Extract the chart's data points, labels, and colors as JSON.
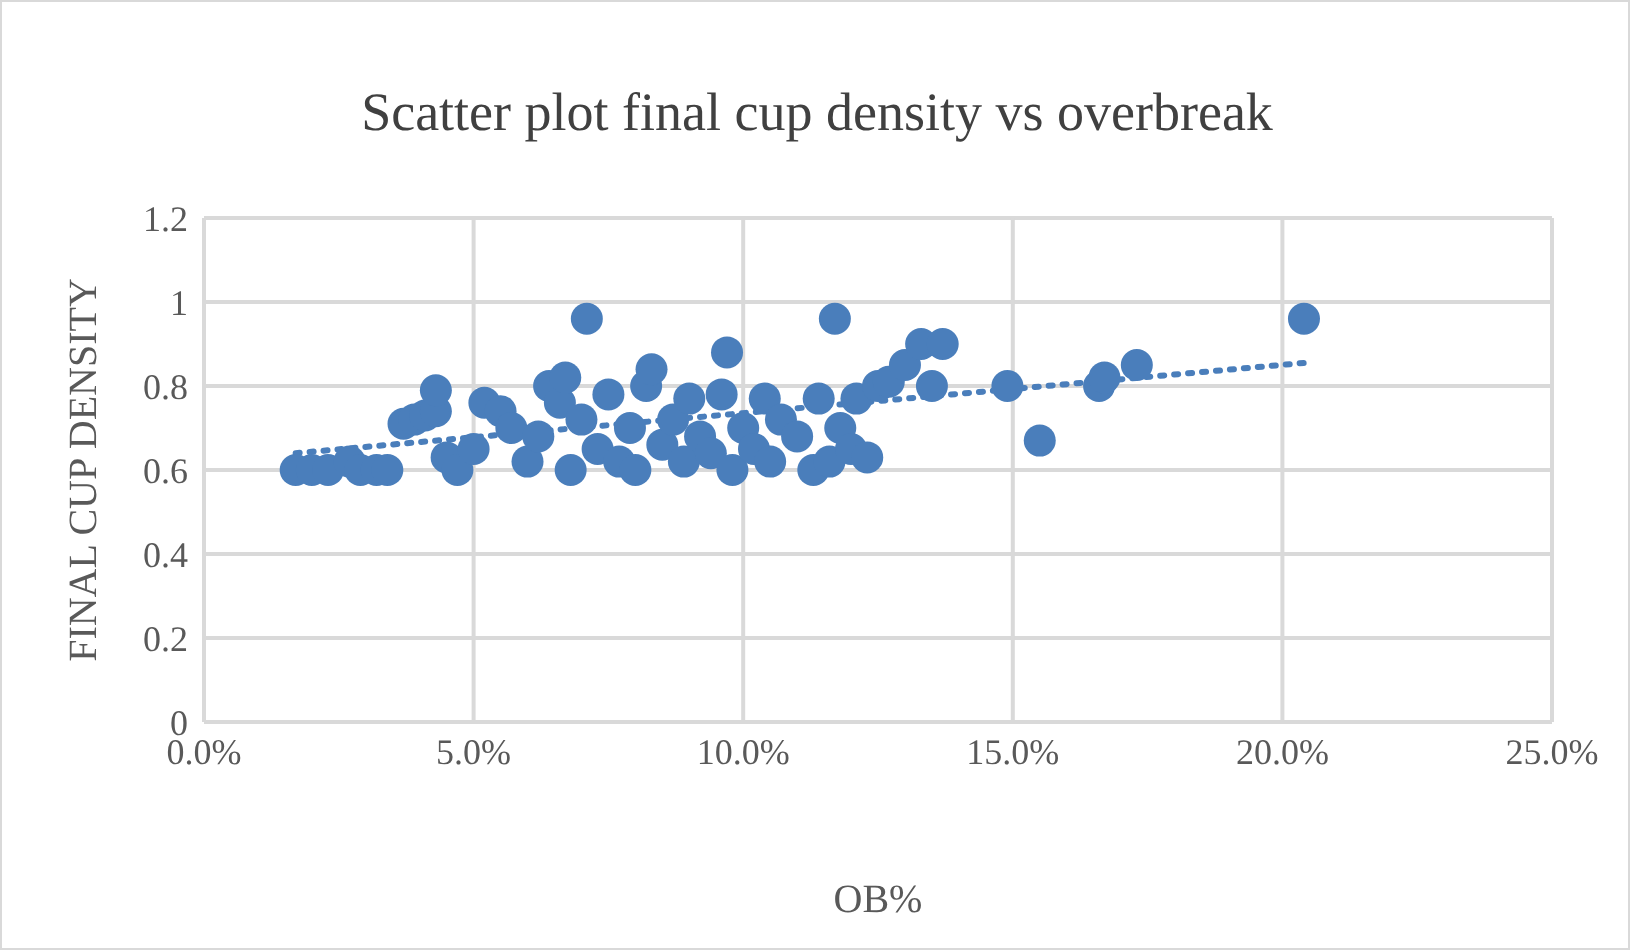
{
  "chart_data": {
    "type": "scatter",
    "title": "Scatter plot final cup density vs overbreak",
    "xlabel": "OB%",
    "ylabel": "FINAL CUP DENSITY",
    "xlim": [
      0,
      0.25
    ],
    "xticks": [
      {
        "value": 0,
        "label": "0.0%"
      },
      {
        "value": 0.05,
        "label": "5.0%"
      },
      {
        "value": 0.1,
        "label": "10.0%"
      },
      {
        "value": 0.15,
        "label": "15.0%"
      },
      {
        "value": 0.2,
        "label": "20.0%"
      },
      {
        "value": 0.25,
        "label": "25.0%"
      }
    ],
    "ylim": [
      0,
      1.2
    ],
    "yticks": [
      0,
      0.2,
      0.4,
      0.6,
      0.8,
      1,
      1.2
    ],
    "grid": true,
    "marker": "circle",
    "series": [
      {
        "color": "#4a7ebb",
        "x": [
          0.017,
          0.02,
          0.023,
          0.027,
          0.029,
          0.032,
          0.034,
          0.037,
          0.039,
          0.041,
          0.043,
          0.043,
          0.045,
          0.047,
          0.05,
          0.052,
          0.055,
          0.057,
          0.06,
          0.062,
          0.064,
          0.066,
          0.067,
          0.068,
          0.07,
          0.071,
          0.073,
          0.075,
          0.077,
          0.079,
          0.08,
          0.082,
          0.083,
          0.085,
          0.087,
          0.089,
          0.09,
          0.092,
          0.094,
          0.096,
          0.097,
          0.098,
          0.1,
          0.102,
          0.104,
          0.105,
          0.107,
          0.11,
          0.113,
          0.114,
          0.116,
          0.117,
          0.118,
          0.12,
          0.121,
          0.123,
          0.125,
          0.127,
          0.13,
          0.133,
          0.135,
          0.137,
          0.149,
          0.155,
          0.166,
          0.167,
          0.173,
          0.204
        ],
        "values": [
          0.6,
          0.6,
          0.6,
          0.62,
          0.6,
          0.6,
          0.6,
          0.71,
          0.72,
          0.73,
          0.74,
          0.79,
          0.63,
          0.6,
          0.65,
          0.76,
          0.74,
          0.7,
          0.62,
          0.68,
          0.8,
          0.76,
          0.82,
          0.6,
          0.72,
          0.96,
          0.65,
          0.78,
          0.62,
          0.7,
          0.6,
          0.8,
          0.84,
          0.66,
          0.72,
          0.62,
          0.77,
          0.68,
          0.64,
          0.78,
          0.88,
          0.6,
          0.7,
          0.65,
          0.77,
          0.62,
          0.72,
          0.68,
          0.6,
          0.77,
          0.62,
          0.96,
          0.7,
          0.65,
          0.77,
          0.63,
          0.8,
          0.81,
          0.85,
          0.9,
          0.8,
          0.9,
          0.8,
          0.67,
          0.8,
          0.82,
          0.85,
          0.96
        ]
      },
      {
        "type": "line",
        "color": "#4a7ebb",
        "line_style": "dotted",
        "marker": "none",
        "x": [
          0.017,
          0.204
        ],
        "values": [
          0.64,
          0.855
        ]
      }
    ]
  }
}
